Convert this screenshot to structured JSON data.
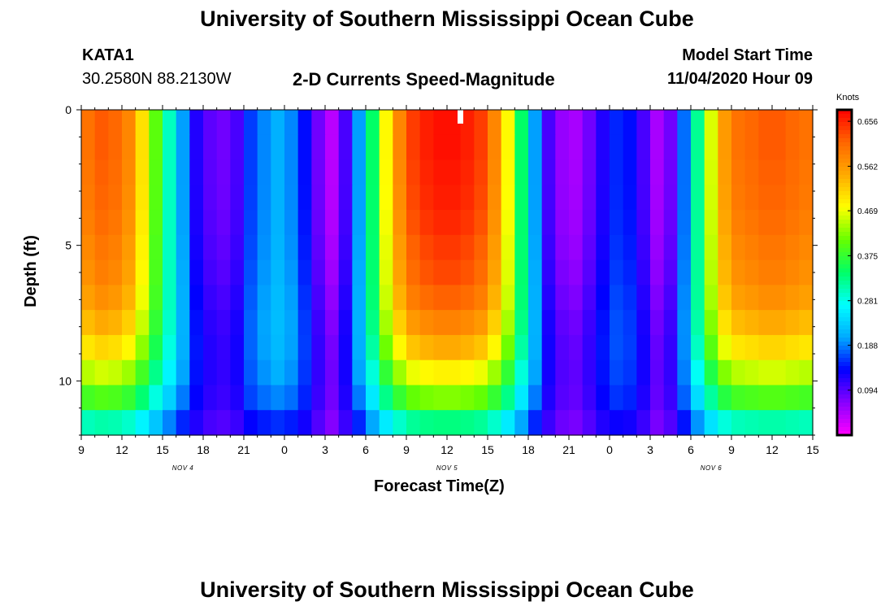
{
  "header": {
    "title_top": "University of Southern Mississippi Ocean Cube",
    "title_bottom": "University of Southern Mississippi Ocean Cube",
    "station_id": "KATA1",
    "station_coords": "30.2580N 88.2130W",
    "plot_title": "2-D Currents Speed-Magnitude",
    "model_start_label": "Model Start Time",
    "model_start_value": "11/04/2020 Hour 09"
  },
  "colors": {
    "colormap": [
      "#ff00ff",
      "#8800ff",
      "#0000ff",
      "#00aaff",
      "#00ffff",
      "#00ff66",
      "#66ff00",
      "#ffff00",
      "#ffaa00",
      "#ff6600",
      "#ff0000"
    ]
  },
  "chart_data": {
    "type": "heatmap",
    "xlabel": "Forecast Time(Z)",
    "ylabel": "Depth (ft)",
    "x_tick_labels": [
      "9",
      "12",
      "15",
      "18",
      "21",
      "0",
      "3",
      "6",
      "9",
      "12",
      "15",
      "18",
      "21",
      "0",
      "3",
      "6",
      "9",
      "12",
      "15"
    ],
    "x_hours": [
      0,
      3,
      6,
      9,
      12,
      15,
      18,
      21,
      24,
      27,
      30,
      33,
      36,
      39,
      42,
      45,
      48,
      51,
      54
    ],
    "x_range_hours": [
      0,
      54
    ],
    "day_labels": [
      {
        "label": "NOV 4",
        "hour": 7.5
      },
      {
        "label": "NOV 5",
        "hour": 27
      },
      {
        "label": "NOV 6",
        "hour": 46.5
      }
    ],
    "y_tick_labels": [
      "0",
      "5",
      "10"
    ],
    "y_ticks": [
      0,
      5,
      10
    ],
    "ylim": [
      0,
      12
    ],
    "y_inverted": true,
    "colorbar": {
      "unit": "Knots",
      "tick_labels": [
        "0.656",
        "0.562",
        "0.469",
        "0.375",
        "0.281",
        "0.188",
        "0.094"
      ],
      "ticks": [
        0.656,
        0.562,
        0.469,
        0.375,
        0.281,
        0.188,
        0.094
      ],
      "range": [
        0.0,
        0.68
      ]
    },
    "time_hours_cells": [
      0,
      1,
      2,
      3,
      4,
      5,
      6,
      7,
      8,
      9,
      10,
      11,
      12,
      13,
      14,
      15,
      16,
      17,
      18,
      19,
      20,
      21,
      22,
      23,
      24,
      25,
      26,
      27,
      28,
      29,
      30,
      31,
      32,
      33,
      34,
      35,
      36,
      37,
      38,
      39,
      40,
      41,
      42,
      43,
      44,
      45,
      46,
      47,
      48,
      49,
      50,
      51,
      52,
      53
    ],
    "surface_speed_knots": [
      0.6,
      0.62,
      0.61,
      0.58,
      0.5,
      0.4,
      0.3,
      0.2,
      0.12,
      0.09,
      0.08,
      0.1,
      0.16,
      0.19,
      0.21,
      0.19,
      0.14,
      0.08,
      0.04,
      0.1,
      0.2,
      0.34,
      0.48,
      0.58,
      0.64,
      0.66,
      0.67,
      0.67,
      0.66,
      0.64,
      0.58,
      0.48,
      0.34,
      0.2,
      0.1,
      0.06,
      0.05,
      0.08,
      0.12,
      0.15,
      0.14,
      0.1,
      0.05,
      0.08,
      0.18,
      0.32,
      0.46,
      0.56,
      0.6,
      0.61,
      0.62,
      0.62,
      0.61,
      0.6
    ],
    "depth_attenuation_ft": [
      0,
      1,
      2,
      3,
      4,
      5,
      6,
      7,
      8,
      9,
      10,
      11,
      12
    ],
    "speed_scale_by_depth": [
      1.0,
      1.0,
      0.99,
      0.98,
      0.96,
      0.93,
      0.9,
      0.85,
      0.78,
      0.7,
      0.6,
      0.5,
      0.38
    ],
    "low_speed_by_depth": [
      0.18,
      0.2,
      0.23,
      0.25,
      0.27,
      0.28,
      0.3,
      0.3,
      0.28,
      0.25,
      0.21,
      0.17,
      0.12
    ],
    "missing_marker": {
      "hour": 27,
      "depth": 0.3
    }
  }
}
